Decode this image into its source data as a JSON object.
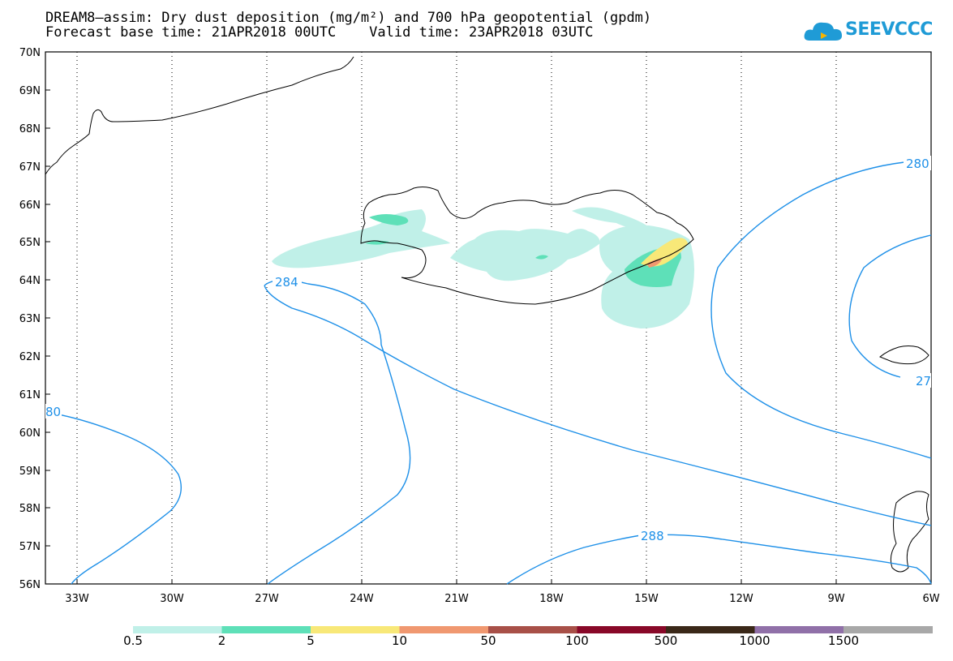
{
  "title_line1": "DREAM8–assim: Dry dust deposition (mg/m²) and 700 hPa geopotential (gpdm)",
  "title_line2": "Forecast base time: 21APR2018 00UTC    Valid time: 23APR2018 03UTC",
  "logo": {
    "text": "SEEVCCC",
    "icon": "cloud-logo-icon",
    "color": "#1f9bd6"
  },
  "map": {
    "lat_labels": [
      "70N",
      "69N",
      "68N",
      "67N",
      "66N",
      "65N",
      "64N",
      "63N",
      "62N",
      "61N",
      "60N",
      "59N",
      "58N",
      "57N",
      "56N"
    ],
    "lon_labels": [
      "33W",
      "30W",
      "27W",
      "24W",
      "21W",
      "18W",
      "15W",
      "12W",
      "9W",
      "6W"
    ],
    "contour_labels": [
      "280",
      "284",
      "288",
      "280",
      "27",
      "80"
    ],
    "contour_color": "#1e90e8"
  },
  "colorbar": {
    "colors": [
      "#c0f0e8",
      "#5ee0b8",
      "#f8e878",
      "#f09870",
      "#a85048",
      "#880828",
      "#3a2818",
      "#9070a8",
      "#a8a8a8"
    ],
    "labels": [
      "0.5",
      "2",
      "5",
      "10",
      "50",
      "100",
      "500",
      "1000",
      "1500"
    ]
  }
}
